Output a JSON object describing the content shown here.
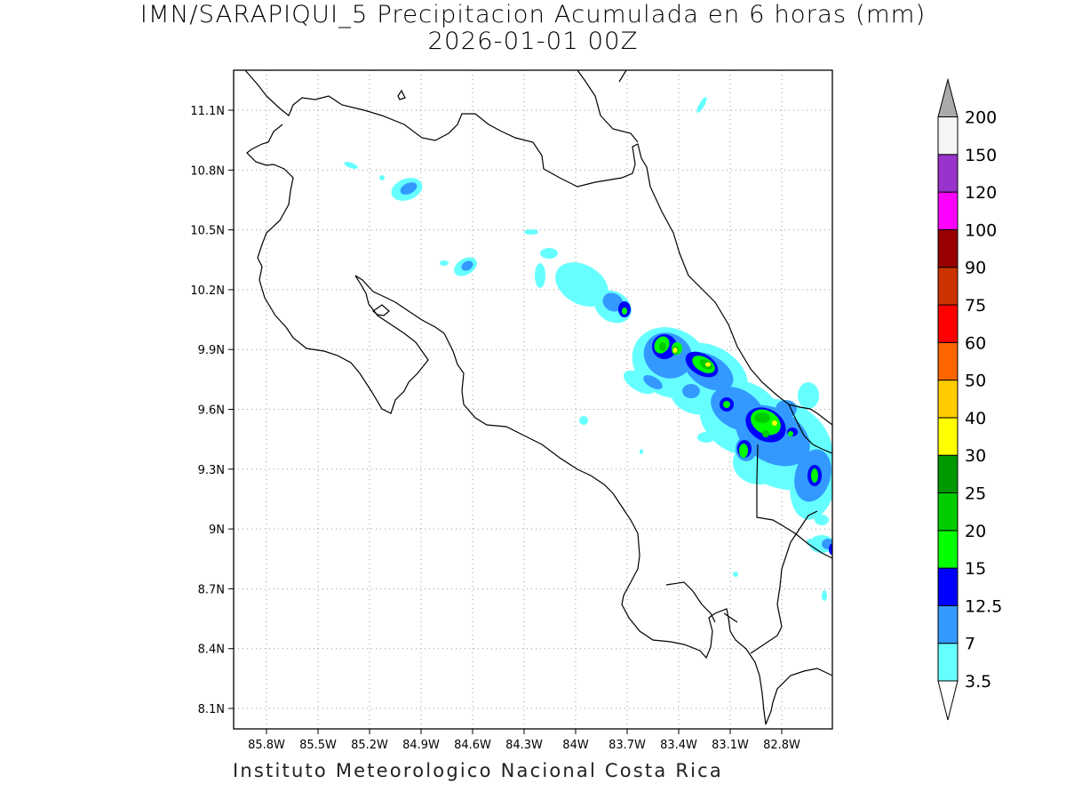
{
  "title": {
    "line1": "IMN/SARAPIQUI_5 Precipitacion Acumulada en 6 horas (mm)",
    "line2": "2026-01-01 00Z"
  },
  "footer": "Instituto Meteorologico Nacional Costa Rica",
  "axes": {
    "x_ticks": [
      "85.8W",
      "85.5W",
      "85.2W",
      "84.9W",
      "84.6W",
      "84.3W",
      "84W",
      "83.7W",
      "83.4W",
      "83.1W",
      "82.8W"
    ],
    "y_ticks": [
      "11.1N",
      "10.8N",
      "10.5N",
      "10.2N",
      "9.9N",
      "9.6N",
      "9.3N",
      "9N",
      "8.7N",
      "8.4N",
      "8.1N"
    ],
    "grid": "dotted"
  },
  "legend": {
    "placement": "right",
    "levels": [
      {
        "label": "3.5",
        "color": "#66ffff"
      },
      {
        "label": "7",
        "color": "#3399ff"
      },
      {
        "label": "12.5",
        "color": "#0000ff"
      },
      {
        "label": "15",
        "color": "#00ff00"
      },
      {
        "label": "20",
        "color": "#00cc00"
      },
      {
        "label": "25",
        "color": "#009900"
      },
      {
        "label": "30",
        "color": "#ffff00"
      },
      {
        "label": "40",
        "color": "#ffcc00"
      },
      {
        "label": "50",
        "color": "#ff6600"
      },
      {
        "label": "60",
        "color": "#ff0000"
      },
      {
        "label": "75",
        "color": "#cc3300"
      },
      {
        "label": "90",
        "color": "#990000"
      },
      {
        "label": "100",
        "color": "#ff00ff"
      },
      {
        "label": "120",
        "color": "#9933cc"
      },
      {
        "label": "150",
        "color": "#f5f5f5"
      },
      {
        "label": "200",
        "color": "#aaaaaa"
      }
    ]
  }
}
